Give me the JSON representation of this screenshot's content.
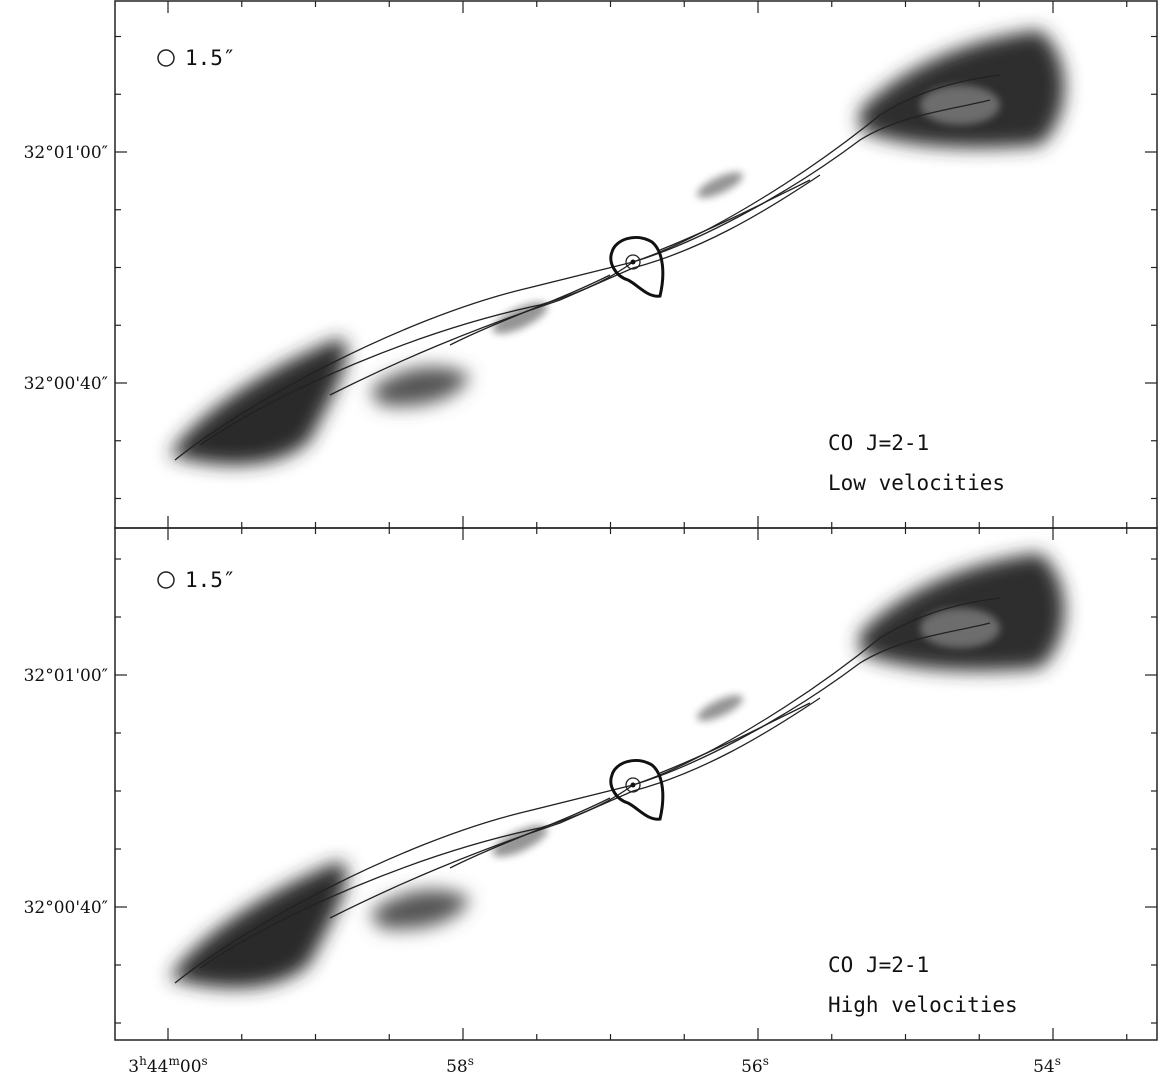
{
  "panels": [
    {
      "beam_label": "1.5″",
      "line": "CO J=2-1",
      "label": "Low velocities",
      "y_ticks": [
        "32°01'00″",
        "32°00'40″"
      ]
    },
    {
      "beam_label": "1.5″",
      "line": "CO J=2-1",
      "label": "High velocities",
      "y_ticks": [
        "32°01'00″",
        "32°00'40″"
      ]
    }
  ],
  "x_ticks": [
    [
      "3",
      "h",
      "44",
      "m",
      "00",
      "s"
    ],
    [
      "58",
      "s"
    ],
    [
      "56",
      "s"
    ],
    [
      "54",
      "s"
    ]
  ]
}
